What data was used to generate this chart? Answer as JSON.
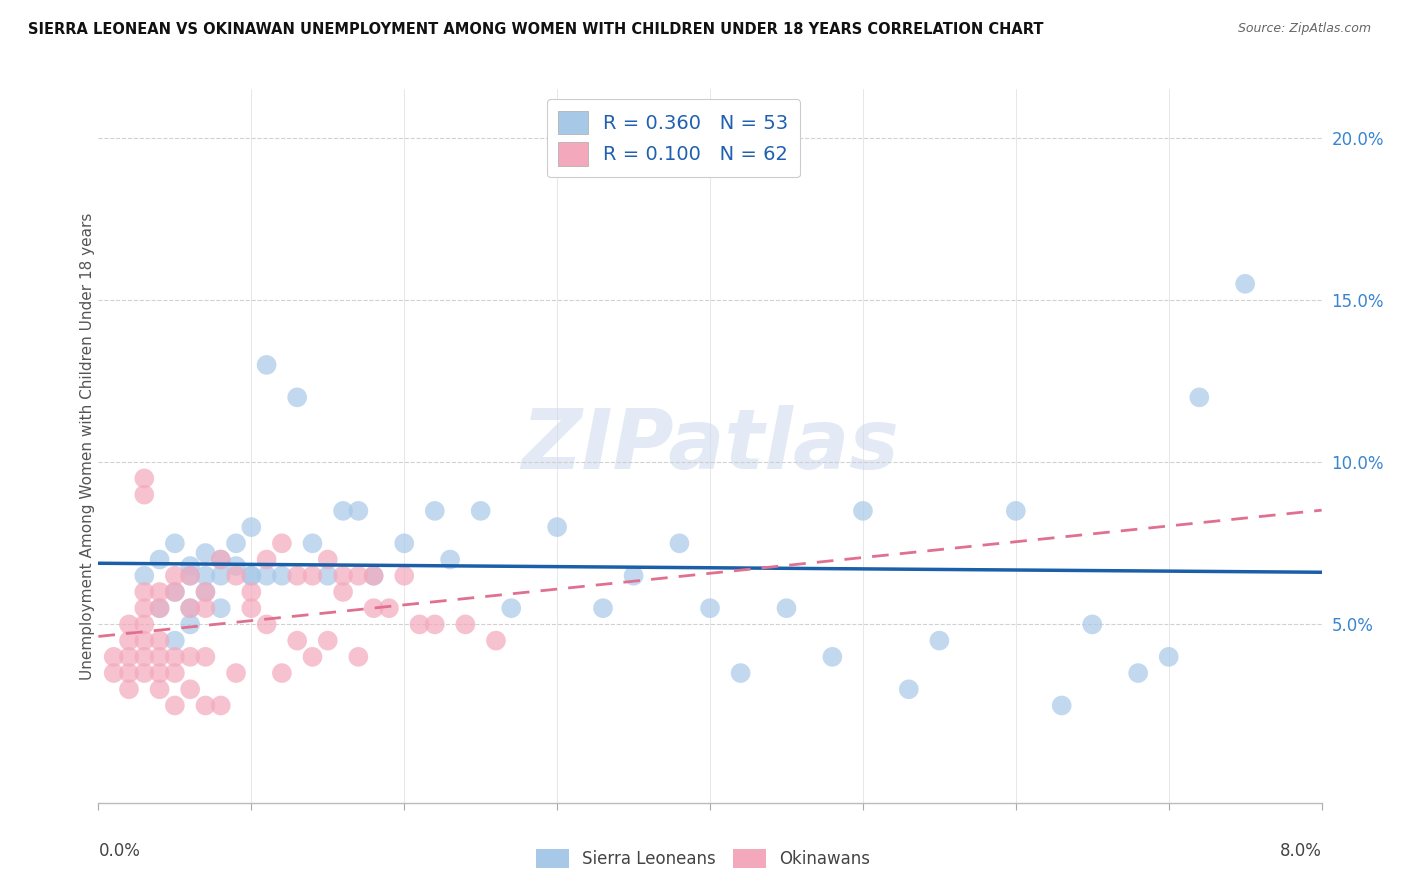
{
  "title": "SIERRA LEONEAN VS OKINAWAN UNEMPLOYMENT AMONG WOMEN WITH CHILDREN UNDER 18 YEARS CORRELATION CHART",
  "source": "Source: ZipAtlas.com",
  "ylabel": "Unemployment Among Women with Children Under 18 years",
  "legend_label1": "Sierra Leoneans",
  "legend_label2": "Okinawans",
  "R1": "0.360",
  "N1": "53",
  "R2": "0.100",
  "N2": "62",
  "xlim": [
    0.0,
    0.08
  ],
  "ylim": [
    -0.005,
    0.215
  ],
  "yticks": [
    0.05,
    0.1,
    0.15,
    0.2
  ],
  "ytick_labels": [
    "5.0%",
    "10.0%",
    "15.0%",
    "20.0%"
  ],
  "xticks": [
    0.0,
    0.01,
    0.02,
    0.03,
    0.04,
    0.05,
    0.06,
    0.07,
    0.08
  ],
  "color_blue": "#a8c8e8",
  "color_pink": "#f4a8bc",
  "color_blue_line": "#1a5fa8",
  "color_pink_line": "#e07090",
  "watermark": "ZIPatlas",
  "sierra_x": [
    0.003,
    0.004,
    0.004,
    0.005,
    0.005,
    0.005,
    0.006,
    0.006,
    0.006,
    0.006,
    0.007,
    0.007,
    0.007,
    0.008,
    0.008,
    0.008,
    0.009,
    0.009,
    0.01,
    0.01,
    0.01,
    0.011,
    0.011,
    0.012,
    0.013,
    0.014,
    0.015,
    0.016,
    0.017,
    0.018,
    0.02,
    0.022,
    0.023,
    0.025,
    0.027,
    0.03,
    0.033,
    0.035,
    0.038,
    0.04,
    0.042,
    0.045,
    0.048,
    0.05,
    0.053,
    0.055,
    0.06,
    0.063,
    0.065,
    0.068,
    0.07,
    0.072,
    0.075
  ],
  "sierra_y": [
    0.065,
    0.07,
    0.055,
    0.06,
    0.075,
    0.045,
    0.068,
    0.065,
    0.05,
    0.055,
    0.06,
    0.065,
    0.072,
    0.065,
    0.055,
    0.07,
    0.075,
    0.068,
    0.065,
    0.08,
    0.065,
    0.065,
    0.13,
    0.065,
    0.12,
    0.075,
    0.065,
    0.085,
    0.085,
    0.065,
    0.075,
    0.085,
    0.07,
    0.085,
    0.055,
    0.08,
    0.055,
    0.065,
    0.075,
    0.055,
    0.035,
    0.055,
    0.04,
    0.085,
    0.03,
    0.045,
    0.085,
    0.025,
    0.05,
    0.035,
    0.04,
    0.12,
    0.155
  ],
  "okinawa_x": [
    0.001,
    0.001,
    0.002,
    0.002,
    0.002,
    0.002,
    0.002,
    0.003,
    0.003,
    0.003,
    0.003,
    0.003,
    0.003,
    0.003,
    0.003,
    0.004,
    0.004,
    0.004,
    0.004,
    0.004,
    0.004,
    0.005,
    0.005,
    0.005,
    0.005,
    0.005,
    0.006,
    0.006,
    0.006,
    0.006,
    0.007,
    0.007,
    0.007,
    0.007,
    0.008,
    0.008,
    0.009,
    0.009,
    0.01,
    0.01,
    0.011,
    0.011,
    0.012,
    0.012,
    0.013,
    0.013,
    0.014,
    0.014,
    0.015,
    0.015,
    0.016,
    0.016,
    0.017,
    0.017,
    0.018,
    0.018,
    0.019,
    0.02,
    0.021,
    0.022,
    0.024,
    0.026
  ],
  "okinawa_y": [
    0.04,
    0.035,
    0.05,
    0.045,
    0.03,
    0.035,
    0.04,
    0.095,
    0.09,
    0.055,
    0.06,
    0.045,
    0.04,
    0.035,
    0.05,
    0.055,
    0.045,
    0.06,
    0.03,
    0.04,
    0.035,
    0.065,
    0.06,
    0.04,
    0.025,
    0.035,
    0.065,
    0.055,
    0.04,
    0.03,
    0.06,
    0.055,
    0.025,
    0.04,
    0.07,
    0.025,
    0.065,
    0.035,
    0.06,
    0.055,
    0.07,
    0.05,
    0.075,
    0.035,
    0.065,
    0.045,
    0.065,
    0.04,
    0.07,
    0.045,
    0.065,
    0.06,
    0.065,
    0.04,
    0.065,
    0.055,
    0.055,
    0.065,
    0.05,
    0.05,
    0.05,
    0.045
  ]
}
